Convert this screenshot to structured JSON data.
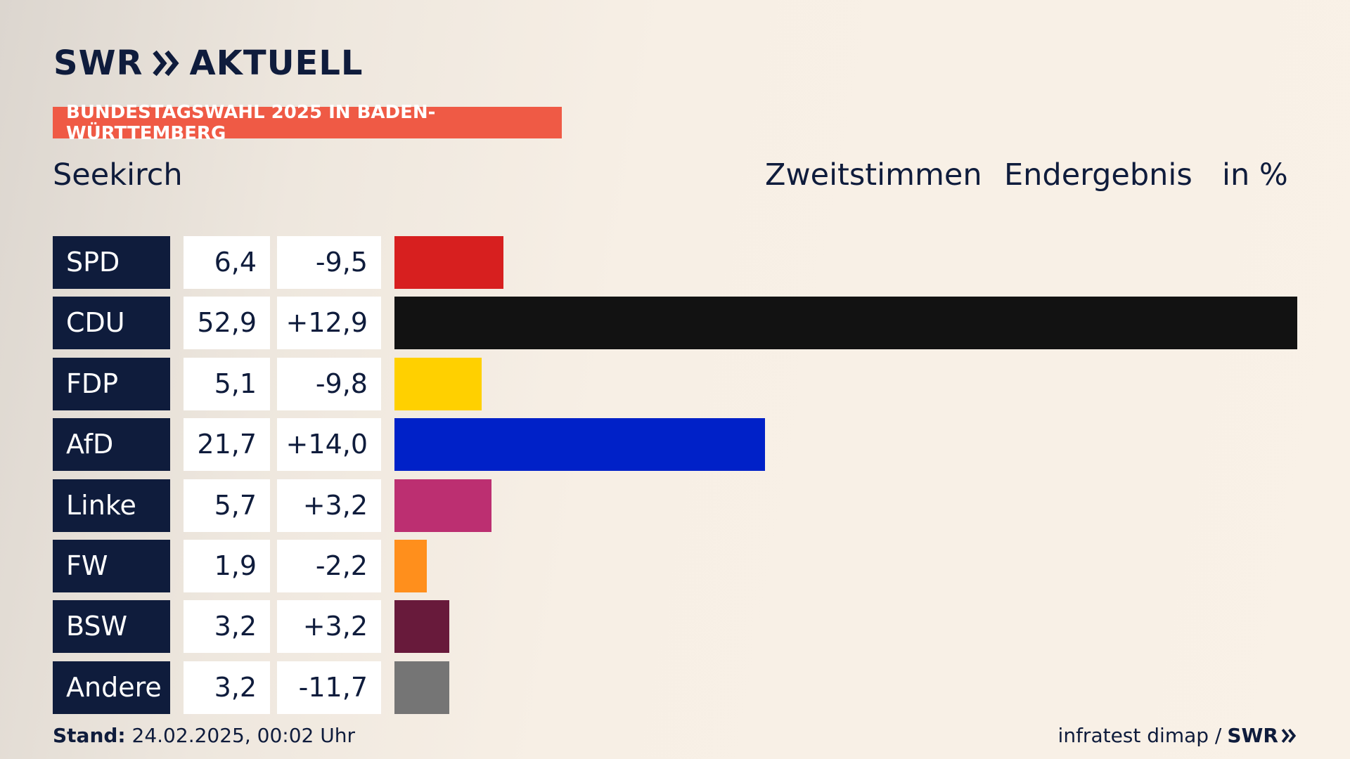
{
  "brand": {
    "name": "SWR",
    "product": "AKTUELL",
    "chevron_icon": "double-chevron-icon"
  },
  "banner": "BUNDESTAGSWAHL 2025 IN BADEN-WÜRTTEMBERG",
  "header": {
    "place": "Seekirch",
    "col1": "Zweitstimmen",
    "col2": "Endergebnis",
    "col3": "in %"
  },
  "colors": {
    "navy": "#0f1c3c",
    "banner": "#ef5a45"
  },
  "chart_data": {
    "type": "bar",
    "orientation": "horizontal",
    "categories": [
      "SPD",
      "CDU",
      "FDP",
      "AfD",
      "Linke",
      "FW",
      "BSW",
      "Andere"
    ],
    "values": [
      6.4,
      52.9,
      5.1,
      21.7,
      5.7,
      1.9,
      3.2,
      3.2
    ],
    "values_label": [
      "6,4",
      "52,9",
      "5,1",
      "21,7",
      "5,7",
      "1,9",
      "3,2",
      "3,2"
    ],
    "change": [
      -9.5,
      12.9,
      -9.8,
      14.0,
      3.2,
      -2.2,
      3.2,
      -11.7
    ],
    "change_label": [
      "-9,5",
      "+12,9",
      "-9,8",
      "+14,0",
      "+3,2",
      "-2,2",
      "+3,2",
      "-11,7"
    ],
    "colors": [
      "#d71f1f",
      "#121212",
      "#ffd000",
      "#0021c8",
      "#bc2f71",
      "#ff8f1c",
      "#681a3b",
      "#757575"
    ],
    "xlim": [
      0,
      52.9
    ],
    "grid": false
  },
  "footer": {
    "stand_label": "Stand:",
    "stand_value": "24.02.2025, 00:02 Uhr",
    "source": "infratest dimap /",
    "source_brand": "SWR"
  }
}
